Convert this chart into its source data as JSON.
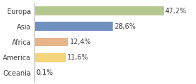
{
  "categories": [
    "Europa",
    "Asia",
    "Africa",
    "America",
    "Oceania"
  ],
  "values": [
    47.2,
    28.6,
    12.4,
    11.6,
    0.1
  ],
  "labels": [
    "47,2%",
    "28,6%",
    "12,4%",
    "11,6%",
    "0,1%"
  ],
  "colors": [
    "#b5c98e",
    "#7090bf",
    "#e8b48a",
    "#f5d57a",
    "#ffffff"
  ],
  "background_color": "#ffffff",
  "xlim": [
    0,
    58
  ],
  "bar_height": 0.58,
  "label_fontsize": 7,
  "tick_fontsize": 7,
  "label_color": "#444444",
  "tick_color": "#444444",
  "spine_color": "#cccccc"
}
